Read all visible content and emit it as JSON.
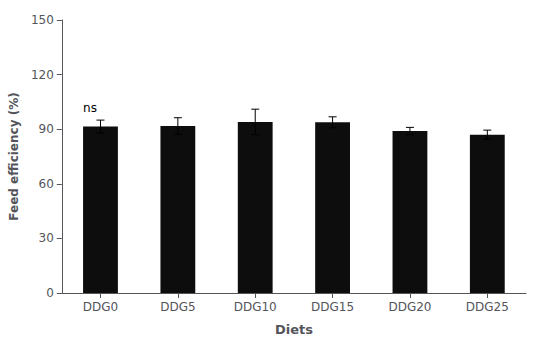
{
  "chart_data": {
    "type": "bar",
    "categories": [
      "DDG0",
      "DDG5",
      "DDG10",
      "DDG15",
      "DDG20",
      "DDG25"
    ],
    "values": [
      91.5,
      91.8,
      94.0,
      93.8,
      89.0,
      87.0
    ],
    "errors": [
      3.5,
      4.5,
      7.0,
      3.0,
      2.0,
      2.5
    ],
    "color": "#0d0d0d",
    "xlabel": "Diets",
    "ylabel": "Feed efficiency (%)",
    "ylim": [
      0,
      150
    ],
    "yticks": [
      0,
      30,
      60,
      90,
      120,
      150
    ],
    "grid": false,
    "annotations": [
      {
        "text": "ns",
        "category": "DDG0"
      }
    ]
  }
}
